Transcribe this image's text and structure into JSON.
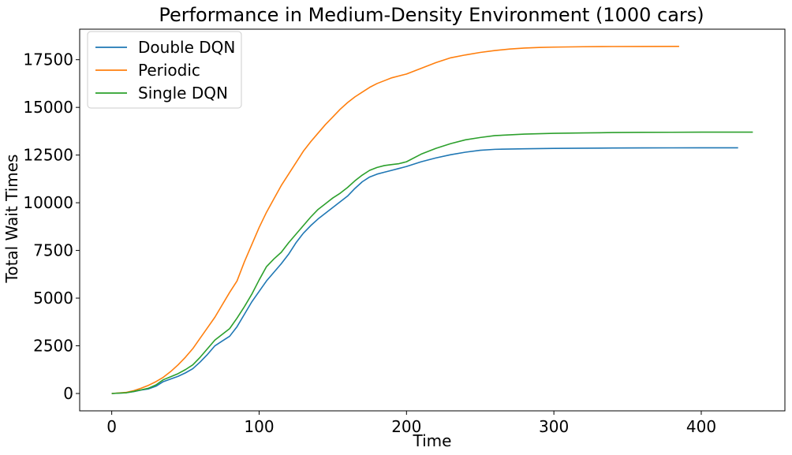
{
  "chart_data": {
    "type": "line",
    "title": "Performance in Medium-Density Environment (1000 cars)",
    "xlabel": "Time",
    "ylabel": "Total Wait Times",
    "xlim": [
      -21.75,
      456.75
    ],
    "ylim": [
      -910,
      19100
    ],
    "xticks": [
      0,
      100,
      200,
      300,
      400
    ],
    "yticks": [
      0,
      2500,
      5000,
      7500,
      10000,
      12500,
      15000,
      17500
    ],
    "grid": false,
    "legend_position": "top-left",
    "series": [
      {
        "name": "Double DQN",
        "color": "#1f77b4",
        "x": [
          0,
          10,
          15,
          20,
          25,
          30,
          35,
          40,
          45,
          50,
          55,
          60,
          65,
          70,
          75,
          80,
          85,
          90,
          95,
          100,
          105,
          110,
          115,
          120,
          125,
          130,
          135,
          140,
          145,
          150,
          155,
          160,
          165,
          170,
          175,
          180,
          185,
          190,
          195,
          200,
          210,
          220,
          230,
          240,
          250,
          260,
          280,
          300,
          320,
          340,
          360,
          380,
          400,
          425
        ],
        "values": [
          0,
          40,
          100,
          180,
          240,
          380,
          620,
          760,
          900,
          1080,
          1300,
          1650,
          2050,
          2500,
          2750,
          3000,
          3500,
          4150,
          4800,
          5350,
          5900,
          6350,
          6800,
          7300,
          7900,
          8400,
          8800,
          9150,
          9450,
          9750,
          10050,
          10350,
          10750,
          11100,
          11350,
          11500,
          11600,
          11700,
          11800,
          11900,
          12150,
          12350,
          12520,
          12650,
          12750,
          12800,
          12830,
          12850,
          12860,
          12870,
          12875,
          12878,
          12880,
          12880
        ]
      },
      {
        "name": "Periodic",
        "color": "#ff7f0e",
        "x": [
          0,
          10,
          15,
          20,
          25,
          30,
          35,
          40,
          45,
          50,
          55,
          60,
          65,
          70,
          75,
          80,
          85,
          90,
          95,
          100,
          105,
          110,
          115,
          120,
          125,
          130,
          135,
          140,
          145,
          150,
          155,
          160,
          165,
          170,
          175,
          180,
          185,
          190,
          195,
          200,
          210,
          220,
          230,
          240,
          250,
          260,
          270,
          280,
          290,
          300,
          320,
          340,
          360,
          385
        ],
        "values": [
          0,
          60,
          150,
          280,
          430,
          620,
          850,
          1150,
          1500,
          1900,
          2350,
          2900,
          3450,
          4000,
          4650,
          5300,
          5900,
          6900,
          7800,
          8700,
          9500,
          10200,
          10900,
          11500,
          12100,
          12700,
          13200,
          13650,
          14100,
          14500,
          14900,
          15250,
          15550,
          15800,
          16050,
          16250,
          16400,
          16550,
          16650,
          16750,
          17050,
          17350,
          17600,
          17750,
          17880,
          17980,
          18060,
          18110,
          18140,
          18160,
          18180,
          18190,
          18195,
          18200
        ]
      },
      {
        "name": "Single DQN",
        "color": "#2ca02c",
        "x": [
          0,
          10,
          15,
          20,
          25,
          30,
          35,
          40,
          45,
          50,
          55,
          60,
          65,
          70,
          75,
          80,
          85,
          90,
          95,
          100,
          105,
          110,
          115,
          120,
          125,
          130,
          135,
          140,
          145,
          150,
          155,
          160,
          165,
          170,
          175,
          180,
          185,
          190,
          195,
          200,
          210,
          220,
          230,
          240,
          250,
          260,
          280,
          300,
          320,
          340,
          360,
          380,
          400,
          435
        ],
        "values": [
          0,
          40,
          110,
          190,
          280,
          450,
          720,
          880,
          1040,
          1250,
          1500,
          1900,
          2350,
          2800,
          3100,
          3400,
          3950,
          4550,
          5200,
          5950,
          6650,
          7050,
          7400,
          7900,
          8350,
          8800,
          9250,
          9650,
          9950,
          10250,
          10500,
          10800,
          11150,
          11450,
          11700,
          11850,
          11950,
          12000,
          12050,
          12150,
          12550,
          12850,
          13100,
          13300,
          13420,
          13520,
          13600,
          13640,
          13660,
          13680,
          13690,
          13695,
          13700,
          13700
        ]
      }
    ]
  }
}
